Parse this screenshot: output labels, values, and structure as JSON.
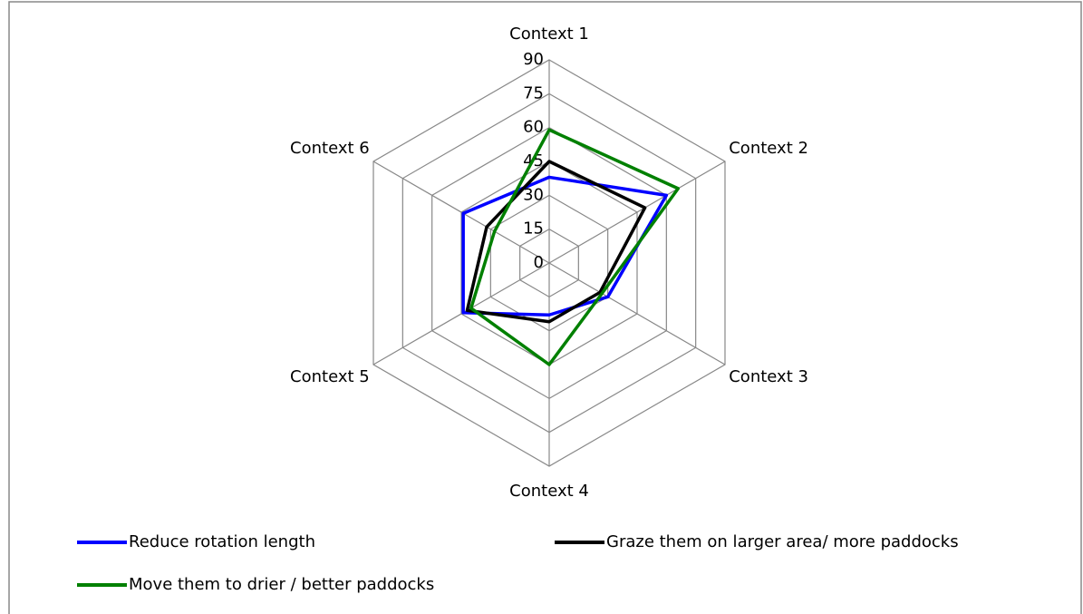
{
  "chart_data": {
    "type": "radar",
    "categories": [
      "Context 1",
      "Context 2",
      "Context 3",
      "Context 4",
      "Context 5",
      "Context 6"
    ],
    "series": [
      {
        "name": "Reduce rotation length",
        "color": "#0000ff",
        "values": [
          38,
          60,
          30,
          23,
          44,
          44
        ]
      },
      {
        "name": "Graze them on larger area/ more paddocks",
        "color": "#000000",
        "values": [
          45,
          49,
          26,
          26,
          42,
          32
        ]
      },
      {
        "name": "Move them to drier / better paddocks",
        "color": "#008000",
        "values": [
          59,
          66,
          27,
          45,
          40,
          28
        ]
      }
    ],
    "rlim": [
      0,
      90
    ],
    "rticks": [
      0,
      15,
      30,
      45,
      60,
      75,
      90
    ],
    "grid": true
  }
}
